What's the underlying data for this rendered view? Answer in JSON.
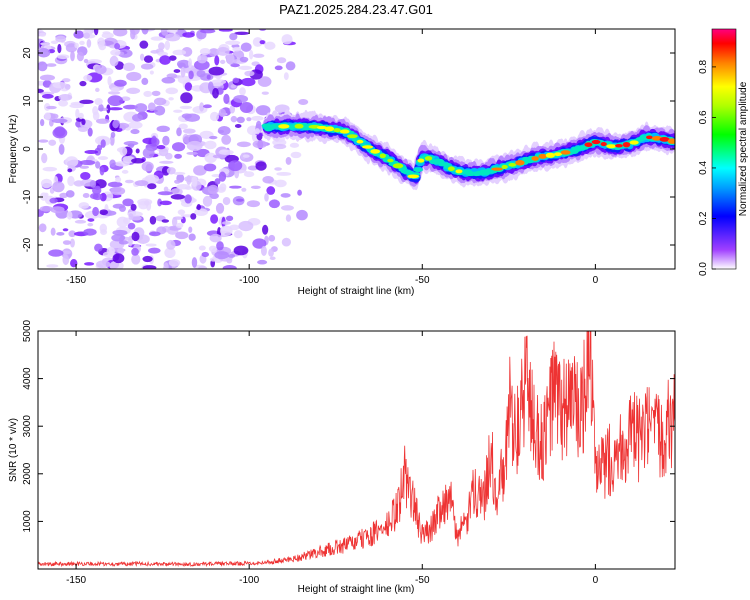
{
  "title": "PAZ1.2025.284.23.47.G01",
  "chart_data": [
    {
      "type": "heatmap",
      "title": "PAZ1.2025.284.23.47.G01",
      "xlabel": "Height of straight line (km)",
      "ylabel": "Frequency (Hz)",
      "xlim": [
        -161,
        23
      ],
      "ylim": [
        -25,
        25
      ],
      "xticks": [
        -150,
        -100,
        -50,
        0
      ],
      "yticks": [
        -20,
        -10,
        0,
        10,
        20
      ],
      "colorbar": {
        "label": "Normalized spectral amplitude",
        "range": [
          0,
          0.95
        ],
        "ticks": [
          0.0,
          0.2,
          0.4,
          0.6,
          0.8
        ]
      },
      "ridge": {
        "height_km": [
          -95,
          -88,
          -80,
          -72,
          -66,
          -60,
          -55,
          -52,
          -50,
          -46,
          -42,
          -38,
          -34,
          -30,
          -25,
          -20,
          -15,
          -10,
          -5,
          0,
          5,
          10,
          15,
          20,
          23
        ],
        "frequency_hz": [
          4.5,
          4.8,
          4.6,
          3.6,
          0.5,
          -2.0,
          -4.5,
          -6.0,
          -1.5,
          -2.5,
          -4.0,
          -5.0,
          -5.0,
          -4.5,
          -3.5,
          -2.5,
          -1.5,
          -1.0,
          0.0,
          1.5,
          0.5,
          1.0,
          2.5,
          2.0,
          1.5
        ]
      },
      "noise_region_km": [
        -161,
        -93
      ]
    },
    {
      "type": "line",
      "xlabel": "Height of straight line (km)",
      "ylabel": "SNR (10 * v/v)",
      "xlim": [
        -161,
        23
      ],
      "ylim": [
        0,
        5000
      ],
      "xticks": [
        -150,
        -100,
        -50,
        0
      ],
      "yticks": [
        1000,
        2000,
        3000,
        4000,
        5000
      ],
      "color": "#ee3333",
      "series": [
        {
          "name": "SNR",
          "x": [
            -161,
            -150,
            -140,
            -130,
            -120,
            -110,
            -100,
            -95,
            -90,
            -85,
            -80,
            -75,
            -70,
            -65,
            -60,
            -57,
            -55,
            -53,
            -50,
            -47,
            -45,
            -42,
            -40,
            -37,
            -35,
            -32,
            -30,
            -29,
            -28,
            -26,
            -25,
            -22,
            -20,
            -18,
            -15,
            -12,
            -10,
            -8,
            -6,
            -5,
            -3,
            -2,
            -1,
            0,
            3,
            5,
            8,
            10,
            13,
            15,
            18,
            20,
            23
          ],
          "y": [
            100,
            110,
            105,
            110,
            100,
            110,
            120,
            140,
            180,
            250,
            350,
            450,
            550,
            700,
            900,
            1300,
            2000,
            1500,
            700,
            900,
            1300,
            1500,
            700,
            1000,
            1700,
            1500,
            2800,
            1400,
            1800,
            2000,
            3500,
            2800,
            4200,
            3000,
            2600,
            3800,
            3300,
            3500,
            3600,
            3100,
            3700,
            5000,
            4000,
            1900,
            2200,
            2400,
            2600,
            2800,
            2700,
            2900,
            2750,
            3000,
            3100
          ]
        }
      ]
    }
  ]
}
